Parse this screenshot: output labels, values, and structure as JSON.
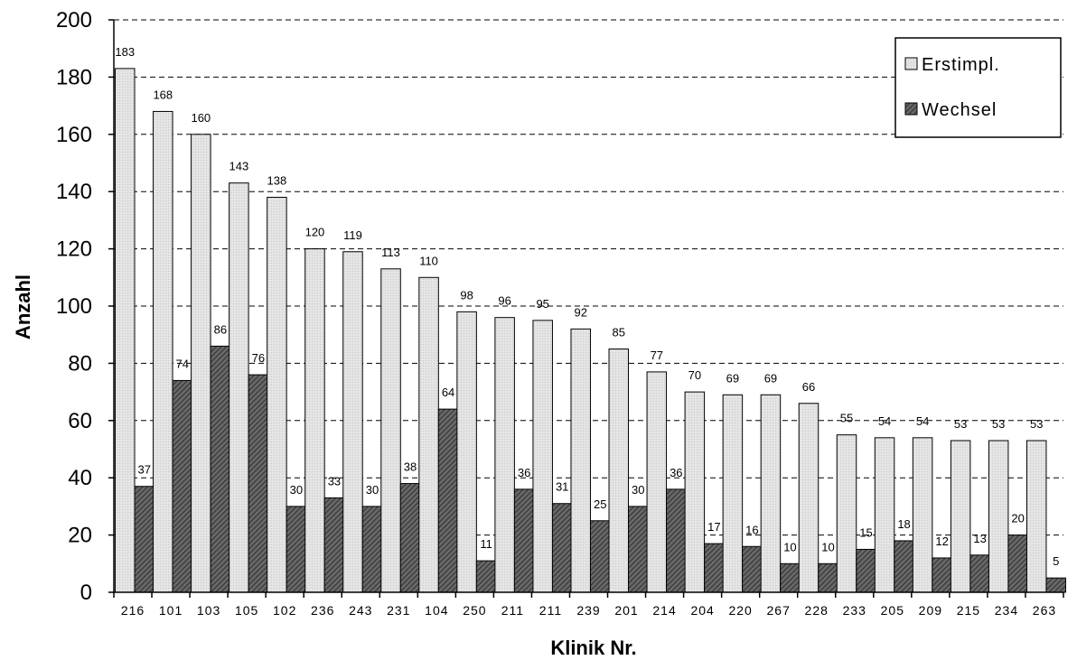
{
  "chart_data": {
    "type": "bar",
    "xlabel": "Klinik Nr.",
    "ylabel": "Anzahl",
    "ylim": [
      0,
      200
    ],
    "yticks": [
      0,
      20,
      40,
      60,
      80,
      100,
      120,
      140,
      160,
      180,
      200
    ],
    "grid": "horizontal dashed",
    "legend_position": "top-right",
    "categories": [
      "216",
      "101",
      "103",
      "105",
      "102",
      "236",
      "243",
      "231",
      "104",
      "250",
      "211",
      "211",
      "239",
      "201",
      "214",
      "204",
      "220",
      "267",
      "228",
      "233",
      "205",
      "209",
      "215",
      "234",
      "263"
    ],
    "series": [
      {
        "name": "Erstimpl.",
        "color": "#e2e2e2",
        "values": [
          183,
          168,
          160,
          143,
          138,
          120,
          119,
          113,
          110,
          98,
          96,
          95,
          92,
          85,
          77,
          70,
          69,
          69,
          66,
          55,
          54,
          54,
          53,
          53,
          53
        ]
      },
      {
        "name": "Wechsel",
        "color": "#5a5a5a",
        "values": [
          37,
          74,
          86,
          76,
          30,
          33,
          30,
          38,
          64,
          11,
          36,
          31,
          25,
          30,
          36,
          17,
          16,
          10,
          10,
          15,
          18,
          12,
          13,
          20,
          5
        ]
      }
    ]
  }
}
